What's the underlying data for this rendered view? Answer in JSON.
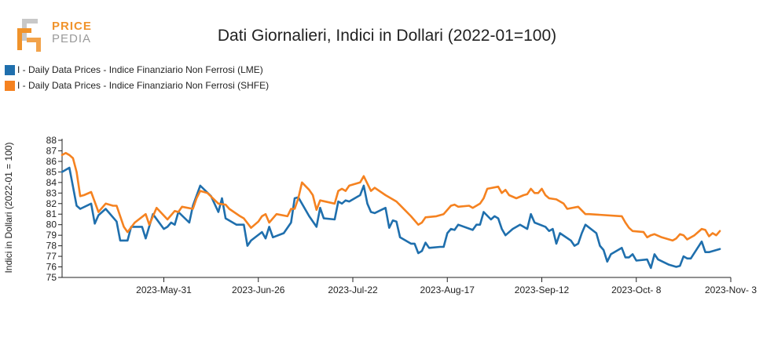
{
  "logo": {
    "line1": "PRICE",
    "line2": "PEDIA"
  },
  "chart_data": {
    "type": "line",
    "title": "Dati Giornalieri, Indici in Dollari (2022-01=100)",
    "xlabel": "",
    "ylabel": "Indici in Dollari (2022-01 = 100)",
    "ylim": [
      75,
      88
    ],
    "yticks": [
      75,
      76,
      77,
      78,
      79,
      80,
      81,
      82,
      83,
      84,
      85,
      86,
      87,
      88
    ],
    "xlim": [
      "2023-05-03",
      "2023-11-03"
    ],
    "xticks": [
      {
        "date": "2023-05-31",
        "label": "2023-May-31"
      },
      {
        "date": "2023-06-26",
        "label": "2023-Jun-26"
      },
      {
        "date": "2023-07-22",
        "label": "2023-Jul-22"
      },
      {
        "date": "2023-08-17",
        "label": "2023-Aug-17"
      },
      {
        "date": "2023-09-12",
        "label": "2023-Sep-12"
      },
      {
        "date": "2023-10-08",
        "label": "2023-Oct- 8"
      },
      {
        "date": "2023-11-03",
        "label": "2023-Nov- 3"
      }
    ],
    "legend_position": "top-left",
    "grid": false,
    "series": [
      {
        "name": "I - Daily Data Prices - Indice Finanziario Non Ferrosi (LME)",
        "color": "#1f6fad",
        "points": [
          [
            "2023-05-03",
            85.0
          ],
          [
            "2023-05-05",
            85.4
          ],
          [
            "2023-05-07",
            81.8
          ],
          [
            "2023-05-08",
            81.5
          ],
          [
            "2023-05-11",
            82.0
          ],
          [
            "2023-05-12",
            80.1
          ],
          [
            "2023-05-13",
            80.9
          ],
          [
            "2023-05-15",
            81.5
          ],
          [
            "2023-05-18",
            80.3
          ],
          [
            "2023-05-19",
            78.5
          ],
          [
            "2023-05-21",
            78.5
          ],
          [
            "2023-05-22",
            79.8
          ],
          [
            "2023-05-25",
            79.8
          ],
          [
            "2023-05-26",
            78.7
          ],
          [
            "2023-05-28",
            81.0
          ],
          [
            "2023-05-31",
            79.6
          ],
          [
            "2023-06-01",
            79.8
          ],
          [
            "2023-06-02",
            80.2
          ],
          [
            "2023-06-03",
            80.0
          ],
          [
            "2023-06-04",
            81.2
          ],
          [
            "2023-06-07",
            80.2
          ],
          [
            "2023-06-08",
            81.8
          ],
          [
            "2023-06-10",
            83.7
          ],
          [
            "2023-06-13",
            82.7
          ],
          [
            "2023-06-15",
            81.2
          ],
          [
            "2023-06-16",
            82.5
          ],
          [
            "2023-06-17",
            80.6
          ],
          [
            "2023-06-20",
            80.0
          ],
          [
            "2023-06-22",
            80.0
          ],
          [
            "2023-06-23",
            78.0
          ],
          [
            "2023-06-24",
            78.5
          ],
          [
            "2023-06-27",
            79.3
          ],
          [
            "2023-06-28",
            78.7
          ],
          [
            "2023-06-29",
            79.8
          ],
          [
            "2023-06-30",
            78.8
          ],
          [
            "2023-07-03",
            79.2
          ],
          [
            "2023-07-05",
            80.2
          ],
          [
            "2023-07-06",
            82.5
          ],
          [
            "2023-07-07",
            82.6
          ],
          [
            "2023-07-10",
            80.8
          ],
          [
            "2023-07-12",
            79.8
          ],
          [
            "2023-07-13",
            81.6
          ],
          [
            "2023-07-14",
            80.6
          ],
          [
            "2023-07-17",
            80.5
          ],
          [
            "2023-07-18",
            82.2
          ],
          [
            "2023-07-19",
            82.0
          ],
          [
            "2023-07-20",
            82.3
          ],
          [
            "2023-07-21",
            82.2
          ],
          [
            "2023-07-24",
            82.8
          ],
          [
            "2023-07-25",
            83.7
          ],
          [
            "2023-07-26",
            82.0
          ],
          [
            "2023-07-27",
            81.2
          ],
          [
            "2023-07-28",
            81.1
          ],
          [
            "2023-07-31",
            81.6
          ],
          [
            "2023-08-01",
            79.7
          ],
          [
            "2023-08-02",
            80.4
          ],
          [
            "2023-08-03",
            80.3
          ],
          [
            "2023-08-04",
            78.8
          ],
          [
            "2023-08-07",
            78.2
          ],
          [
            "2023-08-08",
            78.2
          ],
          [
            "2023-08-09",
            77.3
          ],
          [
            "2023-08-10",
            77.5
          ],
          [
            "2023-08-11",
            78.3
          ],
          [
            "2023-08-12",
            77.8
          ],
          [
            "2023-08-15",
            77.9
          ],
          [
            "2023-08-16",
            77.9
          ],
          [
            "2023-08-17",
            79.2
          ],
          [
            "2023-08-18",
            79.6
          ],
          [
            "2023-08-19",
            79.5
          ],
          [
            "2023-08-20",
            80.0
          ],
          [
            "2023-08-24",
            79.5
          ],
          [
            "2023-08-25",
            80.0
          ],
          [
            "2023-08-26",
            80.0
          ],
          [
            "2023-08-27",
            81.2
          ],
          [
            "2023-08-29",
            80.5
          ],
          [
            "2023-08-30",
            80.8
          ],
          [
            "2023-08-31",
            80.6
          ],
          [
            "2023-09-01",
            79.6
          ],
          [
            "2023-09-02",
            79.0
          ],
          [
            "2023-09-04",
            79.6
          ],
          [
            "2023-09-06",
            80.0
          ],
          [
            "2023-09-07",
            79.8
          ],
          [
            "2023-09-08",
            79.6
          ],
          [
            "2023-09-09",
            81.0
          ],
          [
            "2023-09-10",
            80.2
          ],
          [
            "2023-09-13",
            79.8
          ],
          [
            "2023-09-14",
            79.4
          ],
          [
            "2023-09-15",
            79.6
          ],
          [
            "2023-09-16",
            78.2
          ],
          [
            "2023-09-17",
            79.2
          ],
          [
            "2023-09-20",
            78.5
          ],
          [
            "2023-09-21",
            78.0
          ],
          [
            "2023-09-22",
            78.2
          ],
          [
            "2023-09-23",
            79.2
          ],
          [
            "2023-09-24",
            80.0
          ],
          [
            "2023-09-27",
            79.2
          ],
          [
            "2023-09-28",
            78.0
          ],
          [
            "2023-09-29",
            77.6
          ],
          [
            "2023-09-30",
            76.5
          ],
          [
            "2023-10-01",
            77.2
          ],
          [
            "2023-10-04",
            77.8
          ],
          [
            "2023-10-05",
            76.9
          ],
          [
            "2023-10-06",
            76.9
          ],
          [
            "2023-10-07",
            77.2
          ],
          [
            "2023-10-08",
            76.6
          ],
          [
            "2023-10-11",
            76.7
          ],
          [
            "2023-10-12",
            75.9
          ],
          [
            "2023-10-13",
            77.2
          ],
          [
            "2023-10-14",
            76.7
          ],
          [
            "2023-10-17",
            76.2
          ],
          [
            "2023-10-19",
            76.0
          ],
          [
            "2023-10-20",
            76.1
          ],
          [
            "2023-10-21",
            77.0
          ],
          [
            "2023-10-22",
            76.8
          ],
          [
            "2023-10-23",
            76.8
          ],
          [
            "2023-10-26",
            78.4
          ],
          [
            "2023-10-27",
            77.4
          ],
          [
            "2023-10-28",
            77.4
          ],
          [
            "2023-10-31",
            77.7
          ]
        ]
      },
      {
        "name": "I - Daily Data Prices - Indice Finanziario Non Ferrosi (SHFE)",
        "color": "#f58220",
        "points": [
          [
            "2023-05-03",
            86.6
          ],
          [
            "2023-05-04",
            86.8
          ],
          [
            "2023-05-05",
            86.6
          ],
          [
            "2023-05-06",
            86.3
          ],
          [
            "2023-05-07",
            85.0
          ],
          [
            "2023-05-08",
            82.7
          ],
          [
            "2023-05-09",
            82.8
          ],
          [
            "2023-05-11",
            83.1
          ],
          [
            "2023-05-13",
            81.2
          ],
          [
            "2023-05-15",
            82.0
          ],
          [
            "2023-05-17",
            81.8
          ],
          [
            "2023-05-18",
            81.8
          ],
          [
            "2023-05-20",
            79.8
          ],
          [
            "2023-05-21",
            79.3
          ],
          [
            "2023-05-23",
            80.2
          ],
          [
            "2023-05-26",
            81.0
          ],
          [
            "2023-05-27",
            80.0
          ],
          [
            "2023-05-29",
            81.6
          ],
          [
            "2023-06-01",
            80.5
          ],
          [
            "2023-06-03",
            81.3
          ],
          [
            "2023-06-04",
            81.2
          ],
          [
            "2023-06-05",
            81.7
          ],
          [
            "2023-06-08",
            81.5
          ],
          [
            "2023-06-09",
            82.5
          ],
          [
            "2023-06-10",
            83.2
          ],
          [
            "2023-06-12",
            83.0
          ],
          [
            "2023-06-15",
            82.0
          ],
          [
            "2023-06-17",
            81.9
          ],
          [
            "2023-06-18",
            81.5
          ],
          [
            "2023-06-21",
            80.8
          ],
          [
            "2023-06-22",
            80.6
          ],
          [
            "2023-06-24",
            79.7
          ],
          [
            "2023-06-26",
            80.3
          ],
          [
            "2023-06-27",
            80.8
          ],
          [
            "2023-06-28",
            81.0
          ],
          [
            "2023-06-29",
            80.2
          ],
          [
            "2023-07-01",
            81.0
          ],
          [
            "2023-07-04",
            80.8
          ],
          [
            "2023-07-05",
            81.5
          ],
          [
            "2023-07-06",
            81.5
          ],
          [
            "2023-07-07",
            82.5
          ],
          [
            "2023-07-08",
            84.0
          ],
          [
            "2023-07-10",
            83.3
          ],
          [
            "2023-07-11",
            82.8
          ],
          [
            "2023-07-12",
            81.4
          ],
          [
            "2023-07-13",
            82.3
          ],
          [
            "2023-07-17",
            82.0
          ],
          [
            "2023-07-18",
            83.2
          ],
          [
            "2023-07-19",
            83.4
          ],
          [
            "2023-07-20",
            83.2
          ],
          [
            "2023-07-21",
            83.7
          ],
          [
            "2023-07-24",
            84.0
          ],
          [
            "2023-07-25",
            84.6
          ],
          [
            "2023-07-26",
            83.9
          ],
          [
            "2023-07-27",
            83.2
          ],
          [
            "2023-07-28",
            83.5
          ],
          [
            "2023-07-31",
            82.8
          ],
          [
            "2023-08-03",
            82.2
          ],
          [
            "2023-08-07",
            80.8
          ],
          [
            "2023-08-09",
            80.0
          ],
          [
            "2023-08-10",
            80.2
          ],
          [
            "2023-08-11",
            80.7
          ],
          [
            "2023-08-14",
            80.8
          ],
          [
            "2023-08-16",
            81.0
          ],
          [
            "2023-08-18",
            81.8
          ],
          [
            "2023-08-19",
            81.9
          ],
          [
            "2023-08-20",
            81.7
          ],
          [
            "2023-08-23",
            81.8
          ],
          [
            "2023-08-24",
            81.6
          ],
          [
            "2023-08-25",
            81.8
          ],
          [
            "2023-08-26",
            82.0
          ],
          [
            "2023-08-27",
            82.5
          ],
          [
            "2023-08-28",
            83.4
          ],
          [
            "2023-08-31",
            83.6
          ],
          [
            "2023-09-01",
            83.0
          ],
          [
            "2023-09-02",
            83.3
          ],
          [
            "2023-09-03",
            82.8
          ],
          [
            "2023-09-05",
            82.5
          ],
          [
            "2023-09-07",
            82.8
          ],
          [
            "2023-09-08",
            82.9
          ],
          [
            "2023-09-09",
            83.4
          ],
          [
            "2023-09-10",
            83.0
          ],
          [
            "2023-09-11",
            83.0
          ],
          [
            "2023-09-12",
            83.4
          ],
          [
            "2023-09-13",
            82.8
          ],
          [
            "2023-09-14",
            82.5
          ],
          [
            "2023-09-16",
            82.4
          ],
          [
            "2023-09-18",
            82.0
          ],
          [
            "2023-09-19",
            81.5
          ],
          [
            "2023-09-22",
            81.7
          ],
          [
            "2023-09-24",
            81.0
          ],
          [
            "2023-09-25",
            81.0
          ],
          [
            "2023-10-04",
            80.8
          ],
          [
            "2023-10-05",
            80.2
          ],
          [
            "2023-10-06",
            79.7
          ],
          [
            "2023-10-07",
            79.4
          ],
          [
            "2023-10-10",
            79.3
          ],
          [
            "2023-10-11",
            78.8
          ],
          [
            "2023-10-12",
            79.0
          ],
          [
            "2023-10-13",
            79.1
          ],
          [
            "2023-10-15",
            78.8
          ],
          [
            "2023-10-18",
            78.5
          ],
          [
            "2023-10-19",
            78.7
          ],
          [
            "2023-10-20",
            79.1
          ],
          [
            "2023-10-21",
            79.0
          ],
          [
            "2023-10-22",
            78.6
          ],
          [
            "2023-10-24",
            79.0
          ],
          [
            "2023-10-26",
            79.6
          ],
          [
            "2023-10-27",
            79.5
          ],
          [
            "2023-10-28",
            78.9
          ],
          [
            "2023-10-29",
            79.2
          ],
          [
            "2023-10-30",
            79.0
          ],
          [
            "2023-10-31",
            79.4
          ]
        ]
      }
    ]
  }
}
